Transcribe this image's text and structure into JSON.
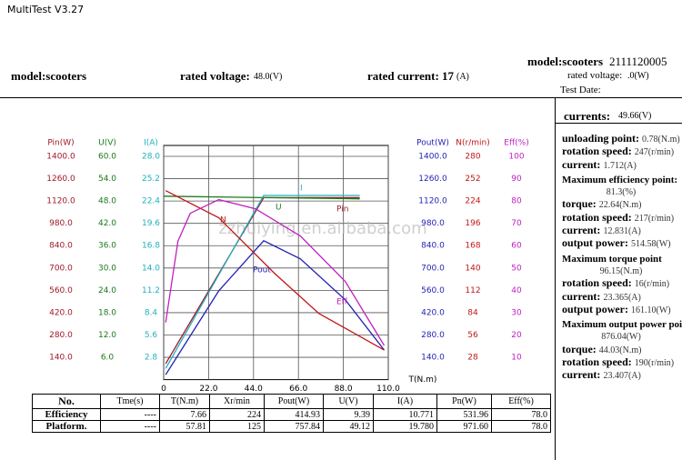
{
  "window_title": "MultiTest V3.27",
  "header": {
    "model": "model:scooters",
    "rated_voltage_label": "rated voltage:",
    "rated_voltage": "48.0(V)",
    "rated_current_label": "rated current:",
    "rated_current": "17",
    "rated_current_unit": "(A)"
  },
  "header_right": {
    "model": "model:scooters",
    "serial": "2111120005",
    "rated_voltage_label": "rated voltage:",
    "rated_voltage": ".0(W)",
    "test_date": "Test Date:"
  },
  "chart_data": {
    "type": "line",
    "watermark": "zzhuiying.en.alibaba.com",
    "x_label": "T(N.m)",
    "xlim": [
      0,
      110
    ],
    "xticks": [
      0,
      {
        "value": 22,
        "label": "22.0"
      },
      {
        "value": 44,
        "label": "44.0"
      },
      {
        "value": 66,
        "label": "66.0"
      },
      {
        "value": 88,
        "label": "88.0"
      },
      {
        "value": 110,
        "label": "110.0"
      }
    ],
    "grid": true,
    "series": [
      {
        "name": "Pin",
        "axis_title": "Pin(W)",
        "color": "#a01828",
        "ylim": [
          0,
          1400
        ],
        "yticks": [
          {
            "value": 1400,
            "label": "1400.0"
          },
          {
            "value": 1260,
            "label": "1260.0"
          },
          {
            "value": 1120,
            "label": "1120.0"
          },
          {
            "value": 980,
            "label": "980.0"
          },
          {
            "value": 840,
            "label": "840.0"
          },
          {
            "value": 700,
            "label": "700.0"
          },
          {
            "value": 560,
            "label": "560.0"
          },
          {
            "value": 420,
            "label": "420.0"
          },
          {
            "value": 280,
            "label": "280.0"
          },
          {
            "value": 140,
            "label": "140.0"
          }
        ],
        "x": [
          1,
          49,
          96
        ],
        "values": [
          100,
          1141,
          1141
        ]
      },
      {
        "name": "U",
        "axis_title": "U(V)",
        "color": "#1a7a1a",
        "ylim": [
          0,
          60
        ],
        "yticks": [
          {
            "value": 60,
            "label": "60.0"
          },
          {
            "value": 54,
            "label": "54.0"
          },
          {
            "value": 48,
            "label": "48.0"
          },
          {
            "value": 42,
            "label": "42.0"
          },
          {
            "value": 36,
            "label": "36.0"
          },
          {
            "value": 30,
            "label": "30.0"
          },
          {
            "value": 24,
            "label": "24.0"
          },
          {
            "value": 18,
            "label": "18.0"
          },
          {
            "value": 12,
            "label": "12.0"
          },
          {
            "value": 6,
            "label": "6.0"
          }
        ],
        "x": [
          0,
          49,
          96
        ],
        "values": [
          49.3,
          48.9,
          48.6
        ]
      },
      {
        "name": "I",
        "axis_title": "I(A)",
        "color": "#20b0c0",
        "ylim": [
          0,
          28
        ],
        "yticks": [
          {
            "value": 28,
            "label": "28.0"
          },
          {
            "value": 25.2,
            "label": "25.2"
          },
          {
            "value": 22.4,
            "label": "22.4"
          },
          {
            "value": 19.6,
            "label": "19.6"
          },
          {
            "value": 16.8,
            "label": "16.8"
          },
          {
            "value": 14,
            "label": "14.0"
          },
          11.2,
          8.4,
          5.6,
          2.8
        ],
        "x": [
          1,
          49,
          96
        ],
        "values": [
          1.4,
          23.1,
          23.1
        ]
      },
      {
        "name": "Pout",
        "axis_title": "Pout(W)",
        "color": "#1f1fb4",
        "ylim": [
          0,
          1400
        ],
        "yticks": [
          {
            "value": 1400,
            "label": "1400.0"
          },
          {
            "value": 1260,
            "label": "1260.0"
          },
          {
            "value": 1120,
            "label": "1120.0"
          },
          {
            "value": 980,
            "label": "980.0"
          },
          {
            "value": 840,
            "label": "840.0"
          },
          {
            "value": 700,
            "label": "700.0"
          },
          {
            "value": 560,
            "label": "560.0"
          },
          {
            "value": 420,
            "label": "420.0"
          },
          {
            "value": 280,
            "label": "280.0"
          },
          {
            "value": 140,
            "label": "140.0"
          }
        ],
        "x": [
          1,
          27,
          49,
          67,
          89,
          108
        ],
        "values": [
          31,
          557,
          871,
          757,
          500,
          186
        ]
      },
      {
        "name": "N",
        "axis_title": "N(r/min)",
        "color": "#c0181a",
        "ylim": [
          0,
          280
        ],
        "yticks": [
          280,
          252,
          224,
          196,
          168,
          140,
          112,
          84,
          56,
          28
        ],
        "x": [
          1,
          27,
          54,
          76,
          108
        ],
        "values": [
          237,
          203,
          134,
          83,
          37
        ]
      },
      {
        "name": "Eff",
        "axis_title": "Eff(%)",
        "color": "#c020c0",
        "ylim": [
          0,
          100
        ],
        "yticks": [
          100,
          90,
          80,
          70,
          60,
          50,
          40,
          30,
          20,
          10
        ],
        "x": [
          1,
          7,
          13,
          27,
          45,
          67,
          89,
          108
        ],
        "values": [
          25.6,
          62,
          74.5,
          80.6,
          76.5,
          64.3,
          43.9,
          15.3
        ]
      }
    ]
  },
  "side": {
    "currents_label": "currents:",
    "currents": "49.66(V)",
    "sections": [
      {
        "items": [
          {
            "label": "unloading point:",
            "value": "0.78(N.m)"
          },
          {
            "label": "rotation speed:",
            "value": "247(r/min)"
          },
          {
            "label": "current:",
            "value": "1.712(A)"
          }
        ]
      },
      {
        "heading": "Maximum efficiency point:",
        "value": "81.3(%)",
        "items": [
          {
            "label": "torque:",
            "value": "22.64(N.m)"
          },
          {
            "label": "rotation speed:",
            "value": "217(r/min)"
          },
          {
            "label": "current:",
            "value": "12.831(A)"
          },
          {
            "label": "output power:",
            "value": "514.58(W)"
          }
        ]
      },
      {
        "heading": "Maximum torque point",
        "value": "96.15(N.m)",
        "items": [
          {
            "label": "rotation speed:",
            "value": "16(r/min)"
          },
          {
            "label": "current:",
            "value": "23.365(A)"
          },
          {
            "label": "output power:",
            "value": "161.10(W)"
          }
        ]
      },
      {
        "heading": "Maximum output power point",
        "value": "876.04(W)",
        "items": [
          {
            "label": "torque:",
            "value": "44.03(N.m)"
          },
          {
            "label": "rotation speed:",
            "value": "190(r/min)"
          },
          {
            "label": "current:",
            "value": "23.407(A)"
          }
        ]
      }
    ]
  },
  "table": {
    "columns": [
      "No.",
      "Tme(s)",
      "T(N.m)",
      "Xr/min",
      "Pout(W)",
      "U(V)",
      "I(A)",
      "Pn(W)",
      "Eff(%)"
    ],
    "rows": [
      [
        "Efficiency",
        "----",
        "7.66",
        "224",
        "414.93",
        "9.39",
        "10.771",
        "531.96",
        "78.0"
      ],
      [
        "Platform.",
        "----",
        "57.81",
        "125",
        "757.84",
        "49.12",
        "19.780",
        "971.60",
        "78.0"
      ]
    ]
  }
}
